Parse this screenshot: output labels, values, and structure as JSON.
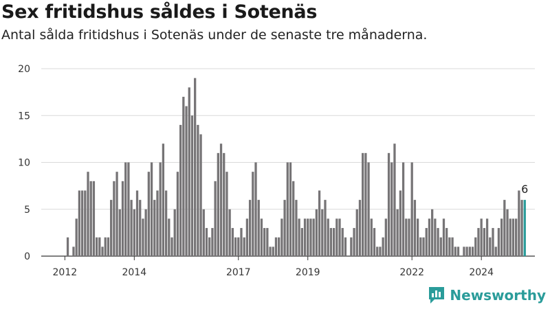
{
  "header": {
    "title": "Sex fritidshus såldes i Sotenäs",
    "subtitle": "Antal sålda fritidshus i Sotenäs under de senaste tre månaderna."
  },
  "brand": {
    "name": "Newsworthy",
    "logo_icon": "newsworthy-logo-icon",
    "color": "#2a9c9a"
  },
  "colors": {
    "bar": "#767476",
    "highlight": "#2a9c9a",
    "grid": "#d9d9d9"
  },
  "chart_data": {
    "type": "bar",
    "title": "Sex fritidshus såldes i Sotenäs",
    "ylim": [
      0,
      20
    ],
    "yticks": [
      0,
      5,
      10,
      15,
      20
    ],
    "x_start": "2011-07",
    "x_tick_labels": [
      {
        "label": "2012",
        "month": "2012-01"
      },
      {
        "label": "2014",
        "month": "2014-01"
      },
      {
        "label": "2017",
        "month": "2017-01"
      },
      {
        "label": "2019",
        "month": "2019-01"
      },
      {
        "label": "2022",
        "month": "2022-01"
      },
      {
        "label": "2024",
        "month": "2024-01"
      }
    ],
    "values": [
      0,
      0,
      0,
      0,
      0,
      0,
      0,
      2,
      0,
      1,
      4,
      7,
      7,
      7,
      9,
      8,
      8,
      2,
      2,
      1,
      2,
      2,
      6,
      8,
      9,
      5,
      8,
      10,
      10,
      6,
      5,
      7,
      6,
      4,
      5,
      9,
      10,
      6,
      7,
      10,
      12,
      7,
      4,
      2,
      5,
      9,
      14,
      17,
      16,
      18,
      15,
      19,
      14,
      13,
      5,
      3,
      2,
      3,
      8,
      11,
      12,
      11,
      9,
      5,
      3,
      2,
      2,
      3,
      2,
      4,
      6,
      9,
      10,
      6,
      4,
      3,
      3,
      1,
      1,
      2,
      2,
      4,
      6,
      10,
      10,
      8,
      6,
      4,
      3,
      4,
      4,
      4,
      4,
      5,
      7,
      5,
      6,
      4,
      3,
      3,
      4,
      4,
      3,
      2,
      0,
      2,
      3,
      5,
      6,
      11,
      11,
      10,
      4,
      3,
      1,
      1,
      2,
      4,
      11,
      10,
      12,
      5,
      7,
      10,
      4,
      4,
      10,
      6,
      4,
      2,
      2,
      3,
      4,
      5,
      4,
      3,
      2,
      4,
      3,
      2,
      2,
      1,
      1,
      0,
      1,
      1,
      1,
      1,
      2,
      3,
      4,
      3,
      4,
      2,
      3,
      1,
      3,
      4,
      6,
      5,
      4,
      4,
      4,
      7,
      6,
      6
    ],
    "highlight_last": true,
    "annotation": "6"
  }
}
